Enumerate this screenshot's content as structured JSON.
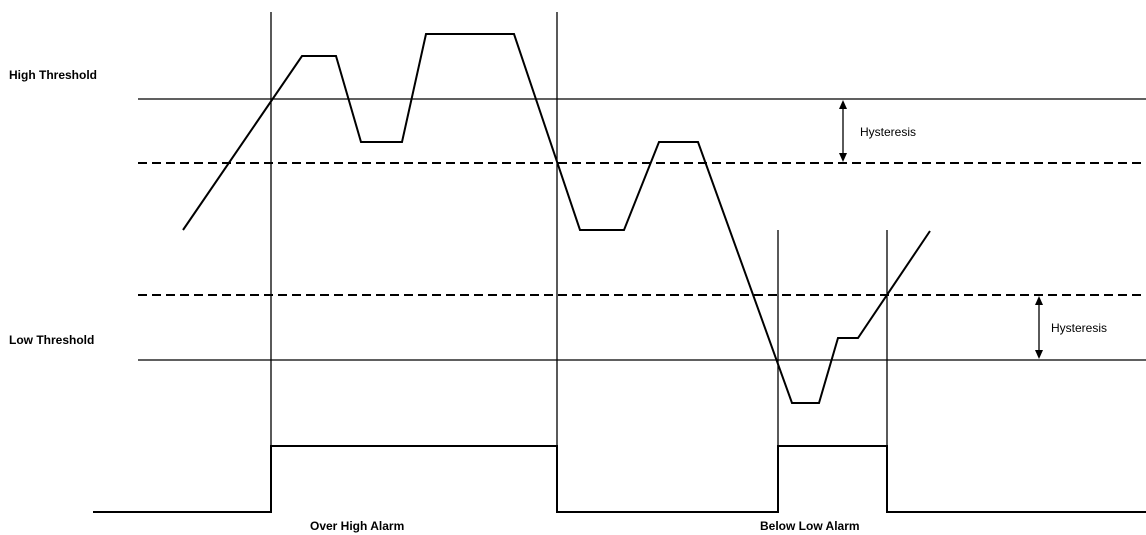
{
  "labels": {
    "high_threshold": "High  Threshold",
    "low_threshold": "Low  Threshold",
    "hysteresis_high": "Hysteresis",
    "hysteresis_low": "Hysteresis",
    "over_high_alarm": "Over High Alarm",
    "below_low_alarm": "Below Low Alarm"
  },
  "colors": {
    "line": "#000000",
    "background": "#ffffff"
  }
}
